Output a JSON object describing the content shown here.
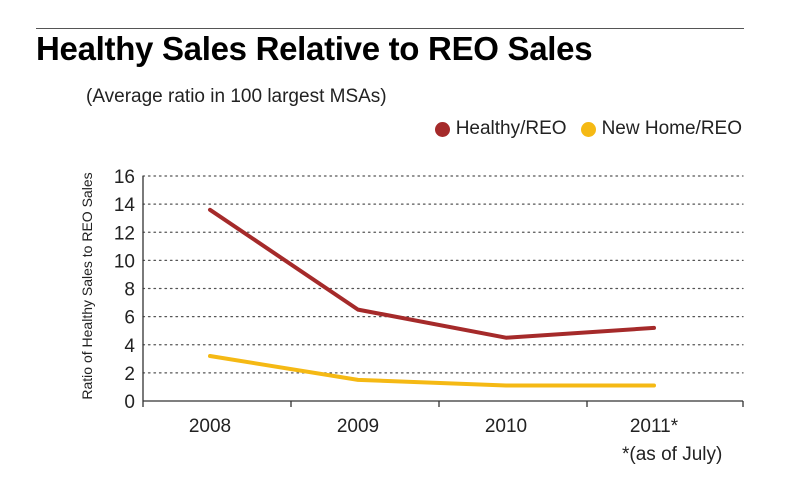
{
  "header": {
    "title": "Healthy Sales Relative to REO Sales",
    "subtitle": "(Average ratio in 100 largest MSAs)"
  },
  "footnote": "*(as of July)",
  "chart_data": {
    "type": "line",
    "title": "Healthy Sales Relative to REO Sales",
    "subtitle": "(Average ratio in 100 largest MSAs)",
    "xlabel": "",
    "ylabel": "Ratio of Healthy Sales to REO Sales",
    "categories": [
      "2008",
      "2009",
      "2010",
      "2011*"
    ],
    "yticks": [
      "0",
      "2",
      "4",
      "6",
      "8",
      "10",
      "12",
      "14",
      "16"
    ],
    "ylim": [
      0,
      16
    ],
    "grid": "horizontal dotted",
    "legend_position": "top-right",
    "series": [
      {
        "name": "Healthy/REO",
        "color": "#a52a2a",
        "values": [
          13.6,
          6.5,
          4.5,
          5.2
        ]
      },
      {
        "name": "New Home/REO",
        "color": "#f5b914",
        "values": [
          3.2,
          1.5,
          1.1,
          1.1
        ]
      }
    ]
  }
}
